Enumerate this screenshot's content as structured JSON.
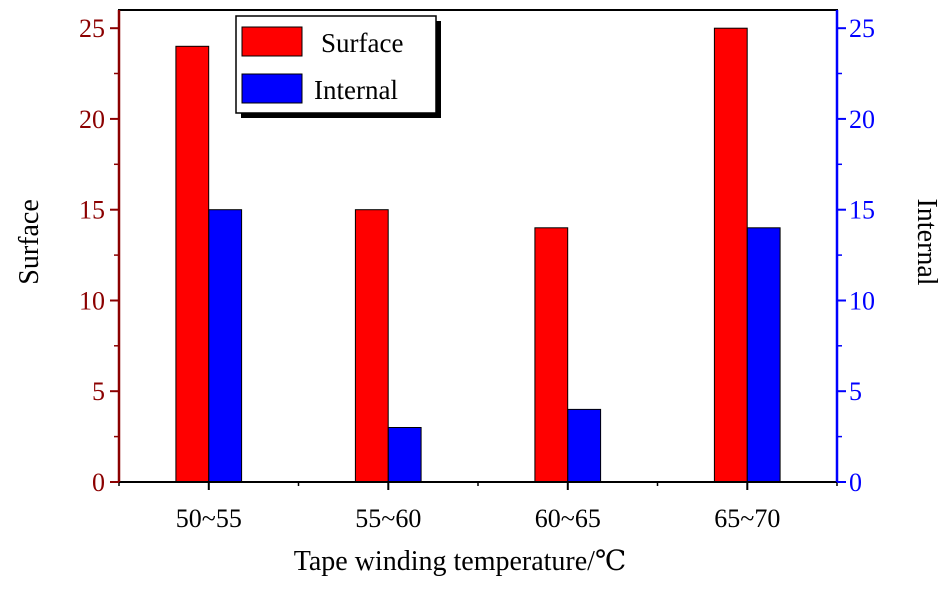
{
  "chart_data": {
    "type": "bar",
    "title": "",
    "categories": [
      "50~55",
      "55~60",
      "60~65",
      "65~70"
    ],
    "series": [
      {
        "name": "Surface",
        "values": [
          24,
          15,
          14,
          25
        ],
        "color": "#ff0000",
        "axis": "left"
      },
      {
        "name": "Internal",
        "values": [
          15,
          3,
          4,
          14
        ],
        "color": "#0000ff",
        "axis": "right"
      }
    ],
    "xlabel": "Tape winding temperature/℃",
    "ylabel": "Surface",
    "y2label": "Internal",
    "ylim": [
      0,
      26
    ],
    "y2lim": [
      0,
      26
    ],
    "yticks": [
      0,
      5,
      10,
      15,
      20,
      25
    ],
    "left_axis_color": "#8b0000",
    "right_axis_color": "#0000ff",
    "grid": false,
    "legend_position": "top-left"
  }
}
